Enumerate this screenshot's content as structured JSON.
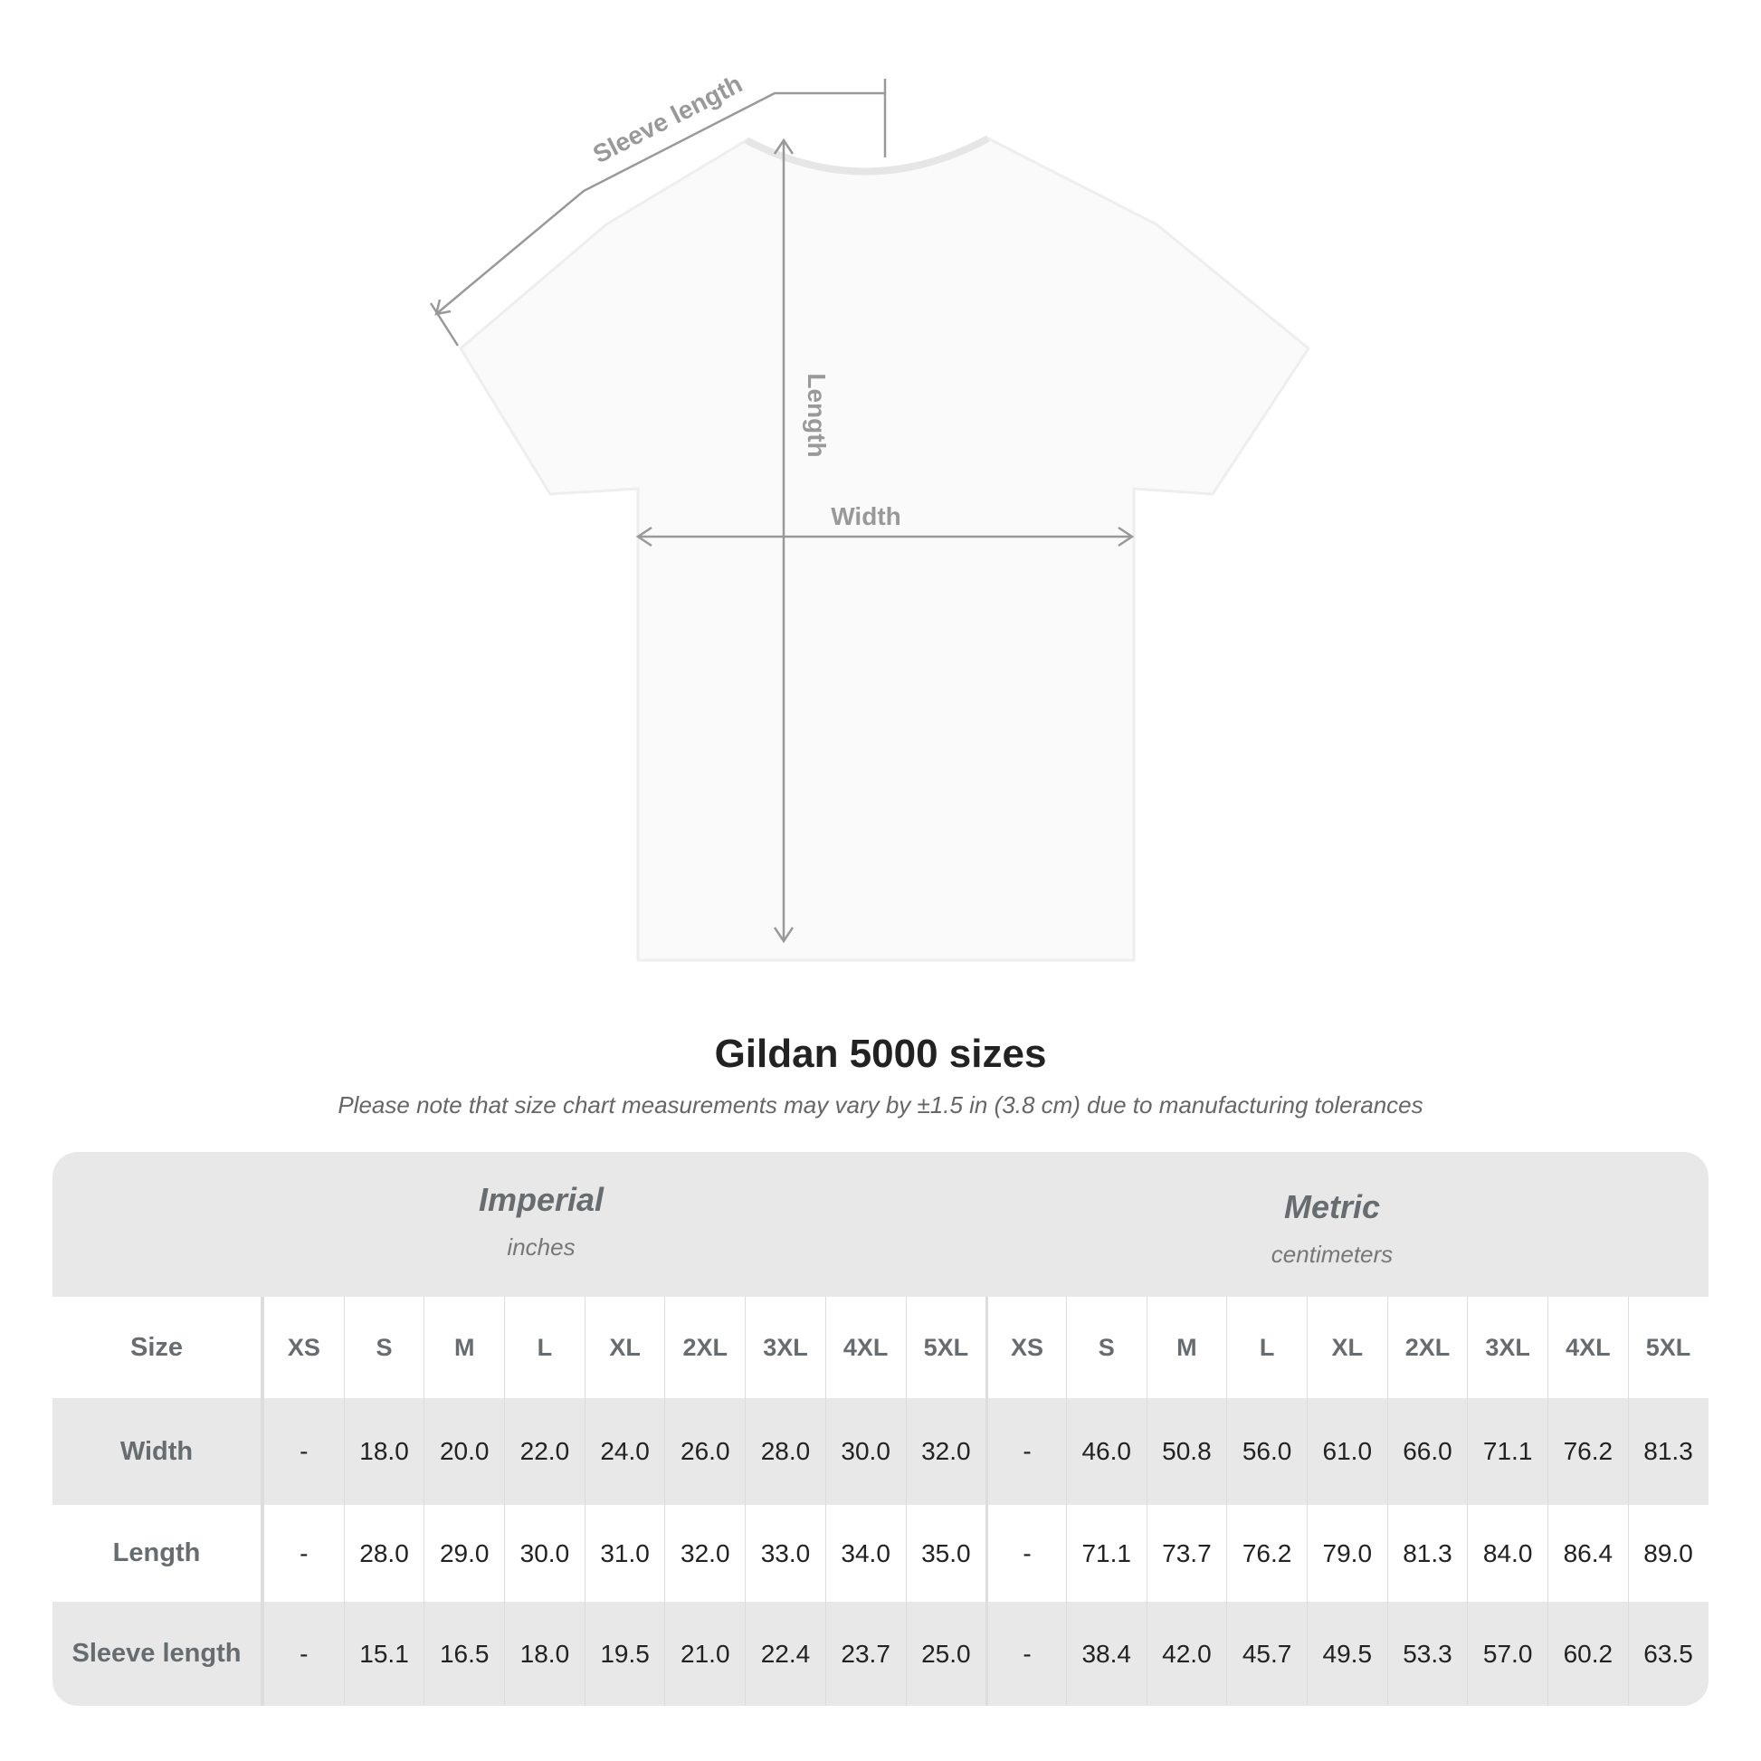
{
  "diagram": {
    "sleeve_label": "Sleeve length",
    "length_label": "Length",
    "width_label": "Width"
  },
  "title": "Gildan 5000 sizes",
  "subtitle": "Please note that size chart measurements may vary by ±1.5 in (3.8 cm) due to manufacturing tolerances",
  "imperial": {
    "name": "Imperial",
    "unit": "inches"
  },
  "metric": {
    "name": "Metric",
    "unit": "centimeters"
  },
  "rows": [
    {
      "label": "Size",
      "imperial": [
        "XS",
        "S",
        "M",
        "L",
        "XL",
        "2XL",
        "3XL",
        "4XL",
        "5XL"
      ],
      "metric": [
        "XS",
        "S",
        "M",
        "L",
        "XL",
        "2XL",
        "3XL",
        "4XL",
        "5XL"
      ]
    },
    {
      "label": "Width",
      "imperial": [
        "-",
        "18.0",
        "20.0",
        "22.0",
        "24.0",
        "26.0",
        "28.0",
        "30.0",
        "32.0"
      ],
      "metric": [
        "-",
        "46.0",
        "50.8",
        "56.0",
        "61.0",
        "66.0",
        "71.1",
        "76.2",
        "81.3"
      ]
    },
    {
      "label": "Length",
      "imperial": [
        "-",
        "28.0",
        "29.0",
        "30.0",
        "31.0",
        "32.0",
        "33.0",
        "34.0",
        "35.0"
      ],
      "metric": [
        "-",
        "71.1",
        "73.7",
        "76.2",
        "79.0",
        "81.3",
        "84.0",
        "86.4",
        "89.0"
      ]
    },
    {
      "label": "Sleeve length",
      "imperial": [
        "-",
        "15.1",
        "16.5",
        "18.0",
        "19.5",
        "21.0",
        "22.4",
        "23.7",
        "25.0"
      ],
      "metric": [
        "-",
        "38.4",
        "42.0",
        "45.7",
        "49.5",
        "53.3",
        "57.0",
        "60.2",
        "63.5"
      ]
    }
  ]
}
